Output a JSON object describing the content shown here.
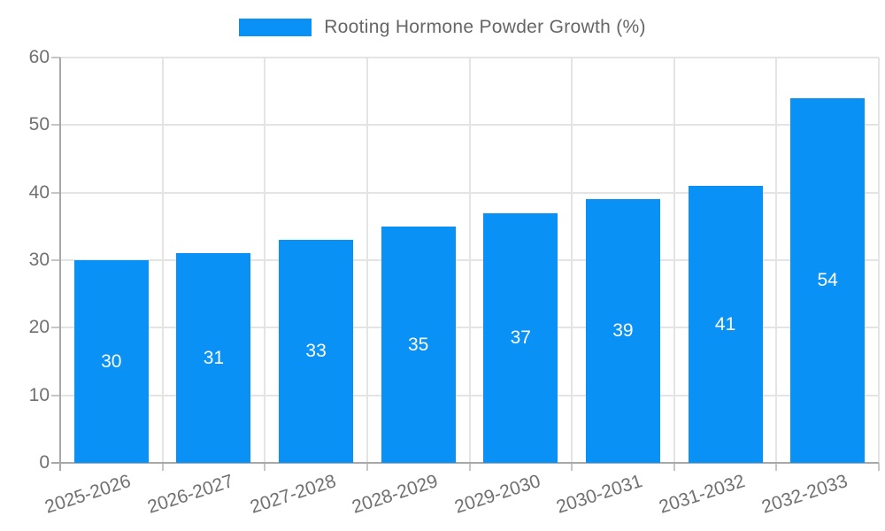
{
  "chart_data": {
    "type": "bar",
    "title": "Rooting Hormone Powder Growth (%)",
    "legend_position": "top-center",
    "categories": [
      "2025-2026",
      "2026-2027",
      "2027-2028",
      "2028-2029",
      "2029-2030",
      "2030-2031",
      "2031-2032",
      "2032-2033"
    ],
    "values": [
      30,
      31,
      33,
      35,
      37,
      39,
      41,
      54
    ],
    "value_labels": [
      "30",
      "31",
      "33",
      "35",
      "37",
      "39",
      "41",
      "54"
    ],
    "ylim": [
      0,
      60
    ],
    "yticks": [
      0,
      10,
      20,
      30,
      40,
      50,
      60
    ],
    "grid": true,
    "colors": {
      "bar": "#0a91f5",
      "value_label": "#ffffff",
      "axis_line": "#a8a8a8",
      "gridline": "#e4e4e4",
      "tick": "#c6c6c6",
      "tick_label": "#707070",
      "legend_label": "#666666",
      "background": "#ffffff"
    }
  }
}
